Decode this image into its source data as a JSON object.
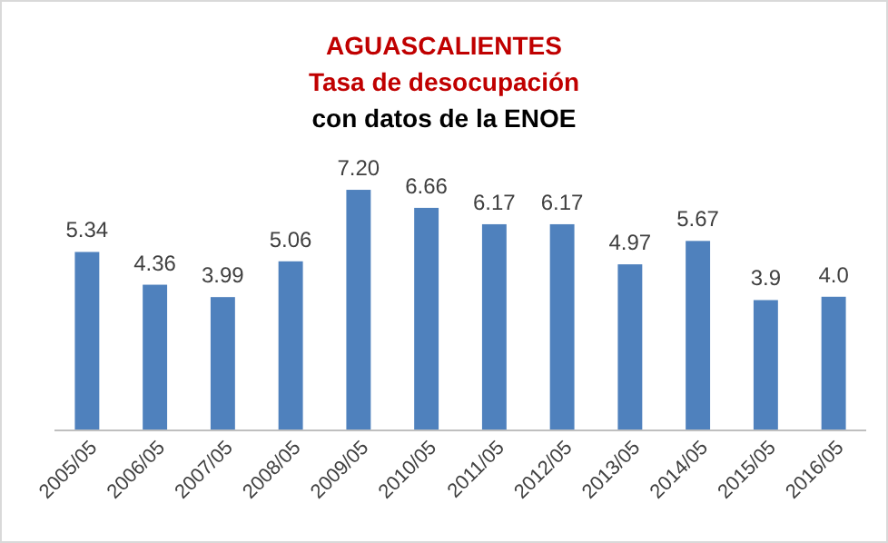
{
  "chart_data": {
    "type": "bar",
    "title": "AGUASCALIENTES",
    "subtitle": "Tasa de desocupación",
    "annotations": [
      "con datos de la ENOE"
    ],
    "categories": [
      "2005/05",
      "2006/05",
      "2007/05",
      "2008/05",
      "2009/05",
      "2010/05",
      "2011/05",
      "2012/05",
      "2013/05",
      "2014/05",
      "2015/05",
      "2016/05"
    ],
    "values": [
      5.34,
      4.36,
      3.99,
      5.06,
      7.2,
      6.66,
      6.17,
      6.17,
      4.97,
      5.67,
      3.9,
      4.0
    ],
    "value_labels": [
      "5.34",
      "4.36",
      "3.99",
      "5.06",
      "7.20",
      "6.66",
      "6.17",
      "6.17",
      "4.97",
      "5.67",
      "3.9",
      "4.0"
    ],
    "color": "#4f81bd",
    "grid": false
  }
}
